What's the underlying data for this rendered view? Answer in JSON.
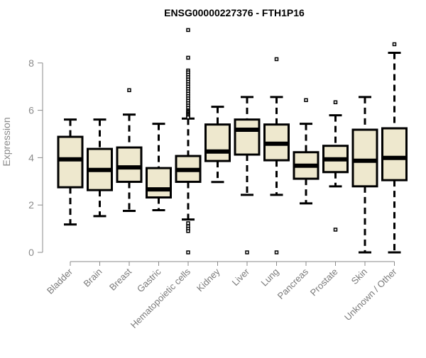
{
  "chart_data": {
    "type": "boxplot",
    "title": "ENSG00000227376 - FTH1P16",
    "xlabel": "",
    "ylabel": "Expression",
    "ylim": [
      0,
      9.5
    ],
    "yticks": [
      0,
      2,
      4,
      6,
      8
    ],
    "box_color": "#EEE8CE",
    "categories": [
      "Bladder",
      "Brain",
      "Breast",
      "Gastric",
      "Hematopoietic cells",
      "Kidney",
      "Liver",
      "Lung",
      "Pancreas",
      "Prostate",
      "Skin",
      "Unknown / Other"
    ],
    "boxes": [
      {
        "min": 1.18,
        "q1": 2.75,
        "median": 3.93,
        "q3": 4.88,
        "max": 5.61,
        "outliers": []
      },
      {
        "min": 1.53,
        "q1": 2.63,
        "median": 3.48,
        "q3": 4.37,
        "max": 5.61,
        "outliers": []
      },
      {
        "min": 1.75,
        "q1": 2.98,
        "median": 3.59,
        "q3": 4.43,
        "max": 5.82,
        "outliers": [
          6.85
        ]
      },
      {
        "min": 1.78,
        "q1": 2.32,
        "median": 2.66,
        "q3": 3.56,
        "max": 5.43,
        "outliers": []
      },
      {
        "min": 1.39,
        "q1": 2.98,
        "median": 3.48,
        "q3": 4.07,
        "max": 5.65,
        "outliers": [
          9.39,
          8.22,
          7.68,
          7.6,
          7.5,
          7.4,
          7.3,
          7.2,
          7.1,
          7.0,
          6.9,
          6.8,
          6.7,
          6.6,
          6.5,
          6.4,
          6.3,
          6.2,
          6.1,
          6.0,
          5.95,
          5.9,
          5.85,
          5.8,
          5.75,
          5.7,
          1.23,
          1.1,
          1.0,
          0.9,
          0.0
        ]
      },
      {
        "min": 2.97,
        "q1": 3.86,
        "median": 4.26,
        "q3": 5.4,
        "max": 6.15,
        "outliers": []
      },
      {
        "min": 2.43,
        "q1": 4.13,
        "median": 5.18,
        "q3": 5.61,
        "max": 6.56,
        "outliers": [
          0.0
        ]
      },
      {
        "min": 2.43,
        "q1": 3.89,
        "median": 4.59,
        "q3": 5.4,
        "max": 6.56,
        "outliers": [
          8.16,
          0.0
        ]
      },
      {
        "min": 2.07,
        "q1": 3.11,
        "median": 3.66,
        "q3": 4.23,
        "max": 5.43,
        "outliers": [
          6.43
        ]
      },
      {
        "min": 2.79,
        "q1": 3.39,
        "median": 3.93,
        "q3": 4.5,
        "max": 5.79,
        "outliers": [
          6.34,
          0.96
        ]
      },
      {
        "min": 0.0,
        "q1": 2.79,
        "median": 3.87,
        "q3": 5.18,
        "max": 6.56,
        "outliers": []
      },
      {
        "min": 0.0,
        "q1": 3.05,
        "median": 3.99,
        "q3": 5.24,
        "max": 8.43,
        "outliers": [
          8.79
        ]
      }
    ]
  }
}
